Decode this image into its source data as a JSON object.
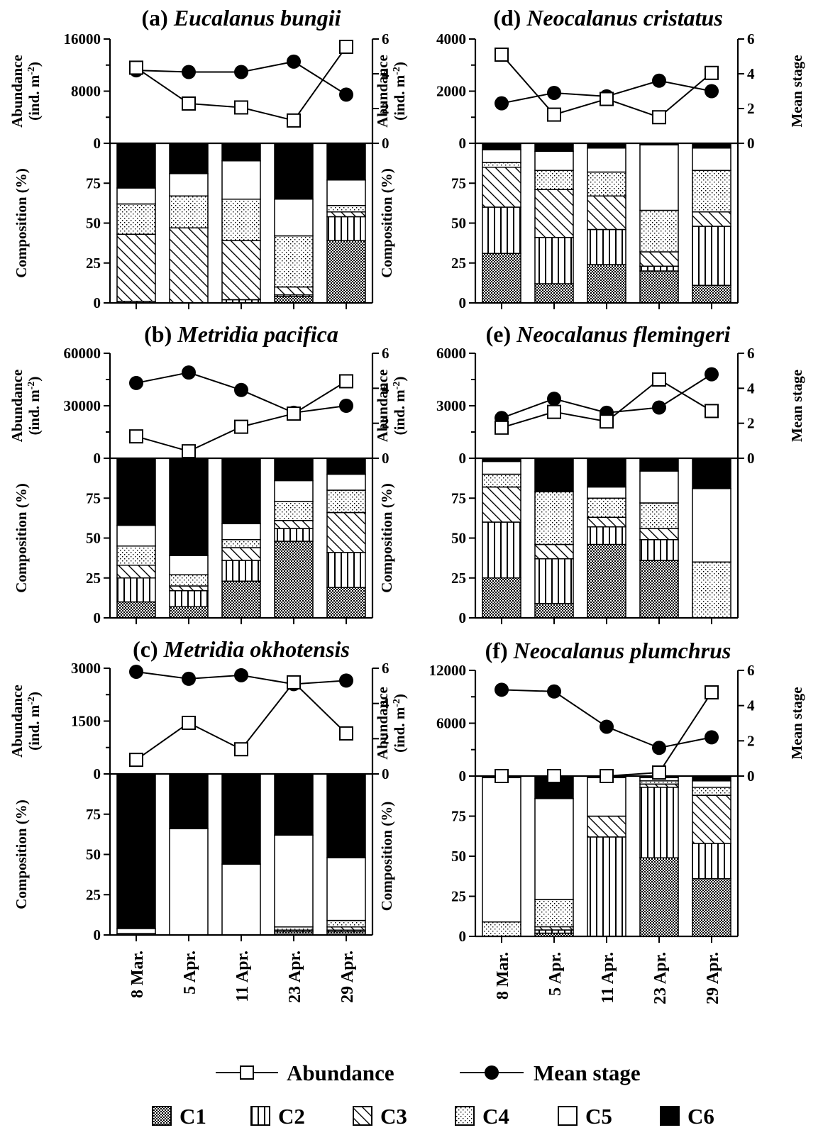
{
  "chart_data": {
    "type": "bar",
    "categories": [
      "8 Mar.",
      "5 Apr.",
      "11 Apr.",
      "23 Apr.",
      "29 Apr."
    ],
    "stages": [
      "C1",
      "C2",
      "C3",
      "C4",
      "C5",
      "C6"
    ],
    "axis_labels": {
      "abundance": "Abundance",
      "abundance_unit": "(ind. m",
      "abundance_unit_exp": "-2",
      "abundance_unit_close": ")",
      "composition": "Composition (%)",
      "mean_stage": "Mean stage"
    },
    "composition_ticks": [
      "0",
      "25",
      "50",
      "75",
      "0"
    ],
    "mean_stage_ticks": [
      "0",
      "2",
      "4",
      "6"
    ],
    "legend": {
      "abundance": "Abundance",
      "mean_stage": "Mean stage"
    },
    "panels": [
      {
        "id": "a",
        "label": "(a)",
        "species": "Eucalanus bungii",
        "abundance_max": 16000,
        "abundance_ticks": [
          "0",
          "8000",
          "16000"
        ],
        "abundance": [
          11600,
          6100,
          5500,
          3500,
          14800
        ],
        "mean_stage": [
          4.2,
          4.1,
          4.1,
          4.7,
          2.8
        ],
        "composition": [
          [
            0,
            1,
            42,
            19,
            10,
            28
          ],
          [
            0,
            0,
            47,
            20,
            14,
            19
          ],
          [
            0,
            2,
            37,
            26,
            24,
            11
          ],
          [
            4,
            1,
            5,
            32,
            23,
            35
          ],
          [
            39,
            15,
            3,
            4,
            16,
            23
          ]
        ]
      },
      {
        "id": "b",
        "label": "(b)",
        "species": "Metridia pacifica",
        "abundance_max": 60000,
        "abundance_ticks": [
          "0",
          "30000",
          "60000"
        ],
        "abundance": [
          12500,
          4000,
          18000,
          25500,
          44000
        ],
        "mean_stage": [
          4.3,
          4.9,
          3.9,
          2.6,
          3.0
        ],
        "composition": [
          [
            10,
            15,
            8,
            12,
            13,
            42
          ],
          [
            7,
            10,
            3,
            7,
            12,
            61
          ],
          [
            23,
            13,
            8,
            5,
            10,
            41
          ],
          [
            48,
            8,
            5,
            12,
            13,
            14
          ],
          [
            19,
            22,
            25,
            14,
            10,
            10
          ]
        ]
      },
      {
        "id": "c",
        "label": "(c)",
        "species": "Metridia okhotensis",
        "abundance_max": 3000,
        "abundance_ticks": [
          "0",
          "1500",
          "3000"
        ],
        "abundance": [
          400,
          1450,
          700,
          2600,
          1150
        ],
        "mean_stage": [
          5.8,
          5.4,
          5.6,
          5.1,
          5.3
        ],
        "composition": [
          [
            0,
            0,
            0,
            1,
            3,
            96
          ],
          [
            0,
            0,
            0,
            0,
            66,
            34
          ],
          [
            0,
            0,
            0,
            0,
            44,
            56
          ],
          [
            2,
            1,
            0,
            2,
            57,
            38
          ],
          [
            2,
            1,
            2,
            4,
            39,
            52
          ]
        ]
      },
      {
        "id": "d",
        "label": "(d)",
        "species": "Neocalanus cristatus",
        "abundance_max": 4000,
        "abundance_ticks": [
          "0",
          "2000",
          "4000"
        ],
        "abundance": [
          3400,
          1100,
          1700,
          1000,
          2700
        ],
        "mean_stage": [
          2.3,
          2.9,
          2.7,
          3.6,
          3.0
        ],
        "composition": [
          [
            31,
            29,
            25,
            3,
            8,
            4
          ],
          [
            12,
            29,
            30,
            12,
            12,
            5
          ],
          [
            24,
            22,
            21,
            15,
            15,
            3
          ],
          [
            20,
            3,
            9,
            26,
            41,
            1
          ],
          [
            11,
            37,
            9,
            26,
            14,
            3
          ]
        ]
      },
      {
        "id": "e",
        "label": "(e)",
        "species": "Neocalanus flemingeri",
        "abundance_max": 6000,
        "abundance_ticks": [
          "0",
          "3000",
          "6000"
        ],
        "abundance": [
          1750,
          2650,
          2100,
          4500,
          2700
        ],
        "mean_stage": [
          2.3,
          3.4,
          2.6,
          2.9,
          4.8
        ],
        "composition": [
          [
            25,
            35,
            22,
            8,
            8,
            2
          ],
          [
            9,
            28,
            9,
            33,
            0,
            21
          ],
          [
            46,
            11,
            6,
            12,
            7,
            18
          ],
          [
            36,
            13,
            7,
            16,
            20,
            8
          ],
          [
            0,
            0,
            0,
            35,
            46,
            19
          ]
        ]
      },
      {
        "id": "f",
        "label": "(f)",
        "species": "Neocalanus plumchrus",
        "abundance_max": 12000,
        "abundance_ticks": [
          "0",
          "6000",
          "12000"
        ],
        "abundance": [
          0,
          0,
          0,
          400,
          9500
        ],
        "mean_stage": [
          4.9,
          4.8,
          2.8,
          1.6,
          2.2
        ],
        "composition": [
          [
            0,
            0,
            0,
            9,
            90,
            1
          ],
          [
            2,
            2,
            2,
            17,
            63,
            14
          ],
          [
            0,
            62,
            13,
            0,
            24,
            1
          ],
          [
            49,
            44,
            2,
            2,
            2,
            1
          ],
          [
            36,
            22,
            30,
            5,
            4,
            3
          ]
        ]
      }
    ]
  }
}
